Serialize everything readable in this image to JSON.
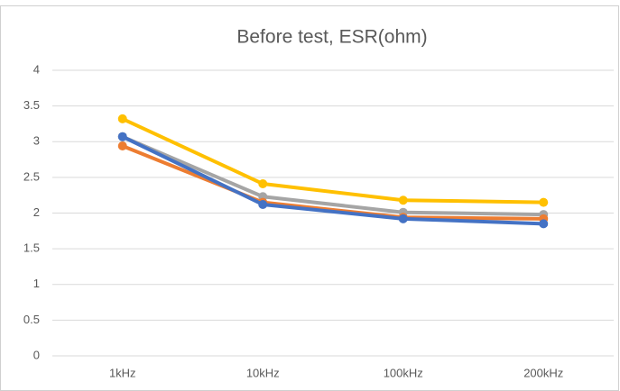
{
  "chart_data": {
    "type": "line",
    "title": "Before test, ESR(ohm)",
    "categories": [
      "1kHz",
      "10kHz",
      "100kHz",
      "200kHz"
    ],
    "series": [
      {
        "color": "#ffc000",
        "values": [
          3.32,
          2.41,
          2.18,
          2.15
        ]
      },
      {
        "color": "#a5a5a5",
        "values": [
          3.07,
          2.23,
          2.01,
          1.98
        ]
      },
      {
        "color": "#ed7d31",
        "values": [
          2.94,
          2.15,
          1.94,
          1.92
        ]
      },
      {
        "color": "#4472c4",
        "values": [
          3.07,
          2.12,
          1.92,
          1.85
        ]
      }
    ],
    "ylim": [
      0,
      4
    ],
    "yticks": [
      0,
      0.5,
      1,
      1.5,
      2,
      2.5,
      3,
      3.5,
      4
    ],
    "grid": true
  }
}
